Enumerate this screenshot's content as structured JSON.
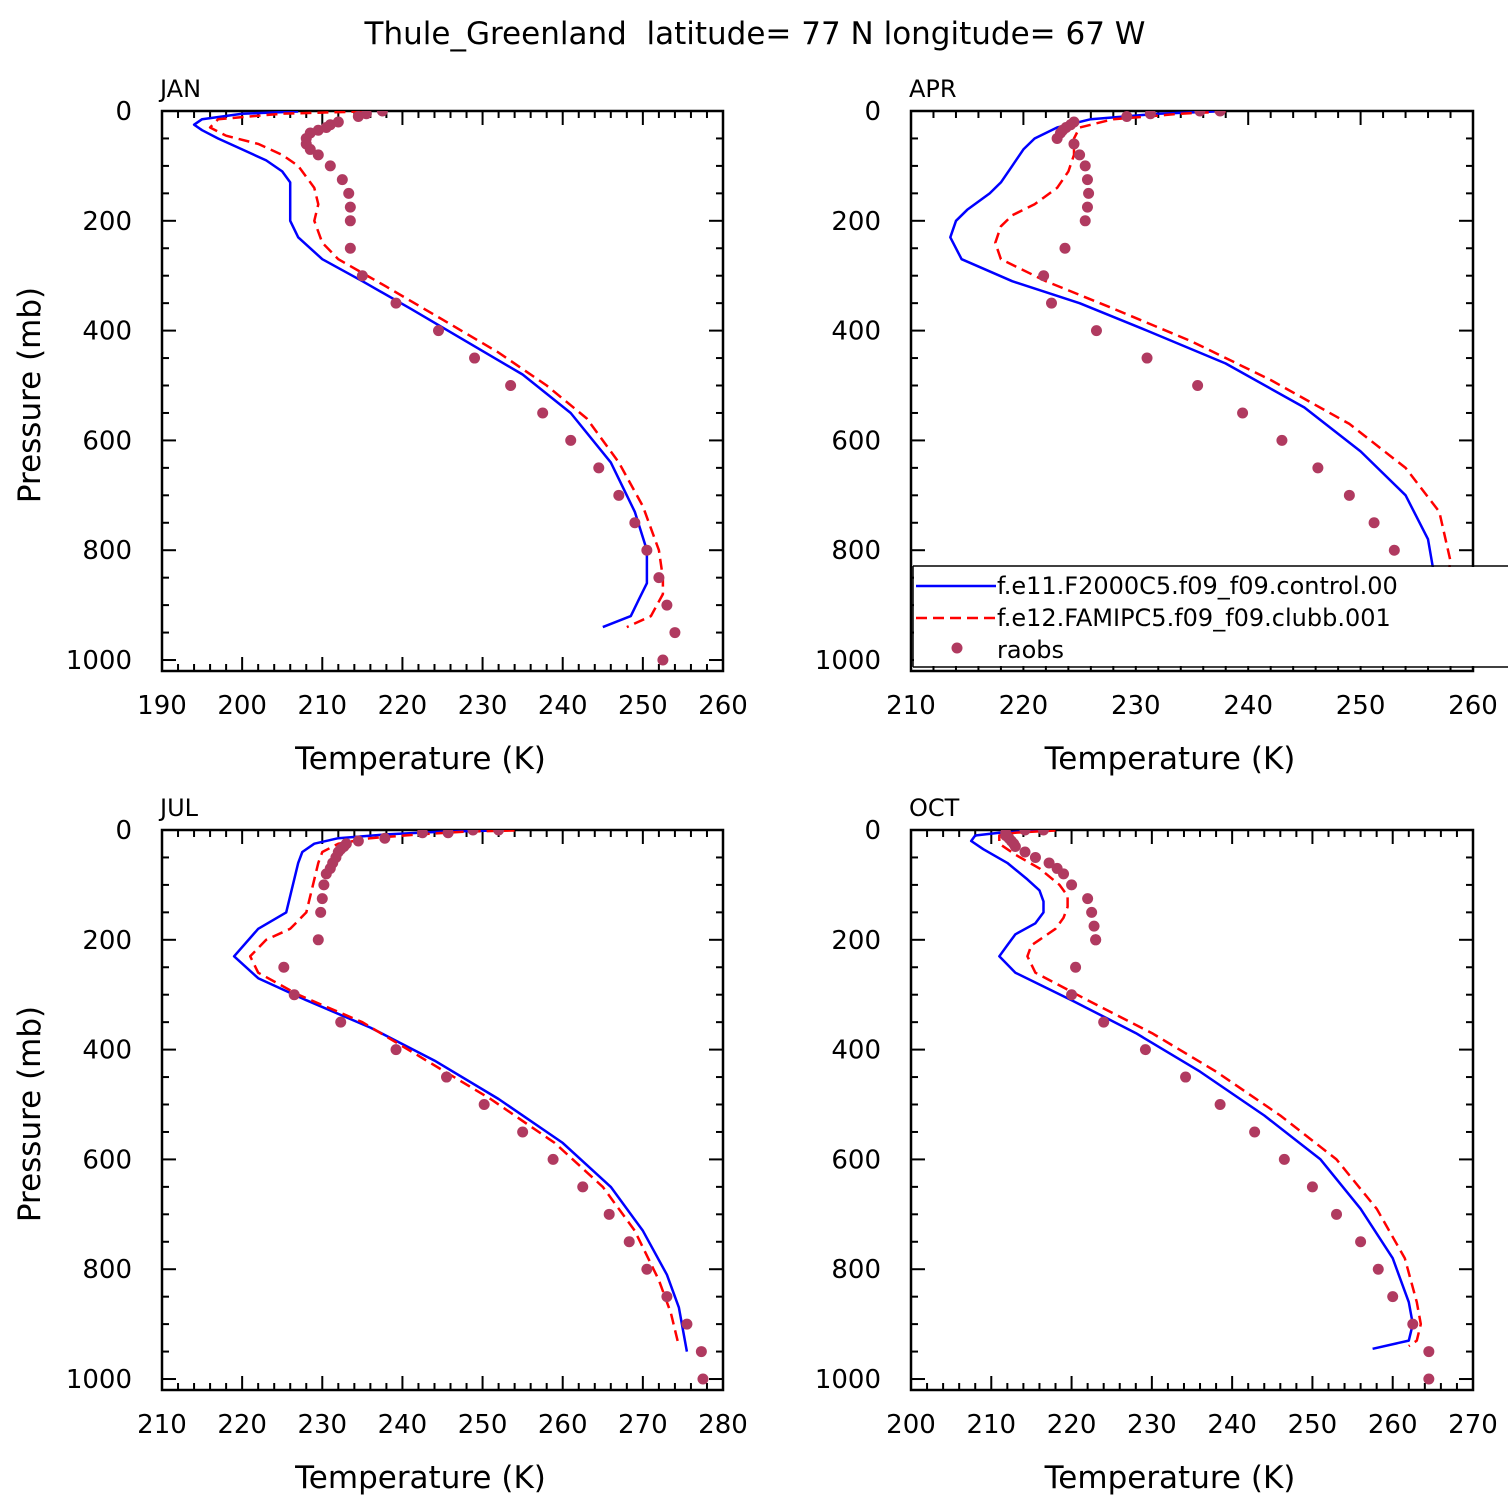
{
  "figure": {
    "title": "Thule_Greenland  latitude= 77 N longitude= 67 W"
  },
  "legend": {
    "entries": [
      {
        "label": "f.e11.F2000C5.f09_f09.control.00",
        "color": "#0000ff",
        "style": "solid"
      },
      {
        "label": "f.e12.FAMIPC5.f09_f09.clubb.001",
        "color": "#ff0000",
        "style": "dashed"
      },
      {
        "label": "raobs",
        "color": "#b03a60",
        "style": "marker"
      }
    ]
  },
  "chart_data": [
    {
      "type": "line",
      "panel_label": "JAN",
      "xlabel": "Temperature (K)",
      "ylabel": "Pressure (mb)",
      "xlim": [
        190,
        260
      ],
      "ylim": [
        0,
        1000
      ],
      "xticks": [
        190,
        200,
        210,
        220,
        230,
        240,
        250,
        260
      ],
      "yticks": [
        0,
        200,
        400,
        600,
        800,
        1000
      ],
      "y_inverted": true,
      "series": [
        {
          "style": "solid",
          "color": "#0000ff",
          "x": [
            207,
            200,
            195,
            194,
            195,
            197,
            200,
            203,
            205,
            206,
            206,
            206,
            207,
            210,
            215,
            221,
            228,
            235,
            241,
            246,
            249,
            250.5,
            250.5,
            249.5,
            248.5,
            245
          ],
          "y": [
            1,
            5,
            15,
            25,
            35,
            50,
            70,
            90,
            110,
            130,
            150,
            200,
            230,
            270,
            310,
            360,
            420,
            480,
            550,
            640,
            730,
            800,
            860,
            890,
            920,
            940
          ]
        },
        {
          "style": "dashed",
          "color": "#ff0000",
          "x": [
            215,
            205,
            197,
            196,
            198,
            202,
            205,
            207,
            208,
            209,
            209.5,
            209,
            210,
            212,
            218,
            225,
            232,
            238,
            243,
            247,
            250,
            252,
            252.5,
            252.5,
            251,
            248
          ],
          "y": [
            1,
            5,
            15,
            30,
            45,
            60,
            80,
            100,
            120,
            140,
            170,
            200,
            240,
            270,
            320,
            380,
            440,
            500,
            560,
            640,
            720,
            800,
            850,
            880,
            920,
            940
          ]
        },
        {
          "style": "marker",
          "color": "#b03a60",
          "x": [
            217.5,
            215.5,
            214.5,
            212,
            211,
            210.5,
            209.5,
            208.5,
            208,
            208,
            208.5,
            209.5,
            211,
            212.5,
            213.3,
            213.5,
            213.5,
            213.5,
            215,
            219.2,
            224.5,
            229,
            233.5,
            237.5,
            241,
            244.5,
            247,
            249,
            250.5,
            252,
            253,
            254,
            252.5
          ],
          "y": [
            0,
            5,
            10,
            20,
            25,
            30,
            35,
            40,
            50,
            60,
            70,
            80,
            100,
            125,
            150,
            175,
            200,
            250,
            300,
            350,
            400,
            450,
            500,
            550,
            600,
            650,
            700,
            750,
            800,
            850,
            900,
            950,
            1000
          ]
        }
      ]
    },
    {
      "type": "line",
      "panel_label": "APR",
      "xlabel": "Temperature (K)",
      "ylabel": "",
      "xlim": [
        210,
        260
      ],
      "ylim": [
        0,
        1000
      ],
      "xticks": [
        210,
        220,
        230,
        240,
        250,
        260
      ],
      "yticks": [
        0,
        200,
        400,
        600,
        800,
        1000
      ],
      "y_inverted": true,
      "series": [
        {
          "style": "solid",
          "color": "#0000ff",
          "x": [
            237,
            232,
            226,
            223,
            221,
            220,
            219,
            218,
            217,
            215,
            214,
            213.5,
            214.5,
            219,
            225,
            231,
            238,
            245,
            250,
            254,
            256,
            256.5,
            256,
            254,
            252.5
          ],
          "y": [
            1,
            5,
            15,
            30,
            50,
            70,
            100,
            130,
            150,
            180,
            200,
            230,
            270,
            310,
            350,
            400,
            460,
            540,
            620,
            700,
            780,
            840,
            890,
            930,
            940
          ]
        },
        {
          "style": "dashed",
          "color": "#ff0000",
          "x": [
            238,
            234,
            228,
            225,
            224.5,
            224.5,
            224,
            223,
            221,
            219,
            218,
            217.5,
            218,
            222,
            228,
            235,
            242,
            249,
            254,
            257,
            258,
            257.5,
            256.5
          ],
          "y": [
            1,
            5,
            15,
            30,
            50,
            80,
            110,
            140,
            170,
            190,
            210,
            240,
            270,
            310,
            360,
            420,
            490,
            570,
            650,
            730,
            820,
            880,
            940
          ]
        },
        {
          "style": "marker",
          "color": "#b03a60",
          "x": [
            237.5,
            235.7,
            231.3,
            229.2,
            224.5,
            224.2,
            223.8,
            223.5,
            223.3,
            223,
            224.5,
            225,
            225.5,
            225.7,
            225.8,
            225.7,
            225.5,
            223.7,
            221.8,
            222.5,
            226.5,
            231,
            235.5,
            239.5,
            243,
            246.2,
            249,
            251.2,
            253,
            254.3,
            256,
            257,
            257.2
          ],
          "y": [
            0,
            0,
            5,
            10,
            20,
            25,
            30,
            35,
            40,
            50,
            60,
            80,
            100,
            125,
            150,
            175,
            200,
            250,
            300,
            350,
            400,
            450,
            500,
            550,
            600,
            650,
            700,
            750,
            800,
            850,
            900,
            950,
            1000
          ]
        }
      ]
    },
    {
      "type": "line",
      "panel_label": "JUL",
      "xlabel": "Temperature (K)",
      "ylabel": "Pressure (mb)",
      "xlim": [
        210,
        280
      ],
      "ylim": [
        0,
        1000
      ],
      "xticks": [
        210,
        220,
        230,
        240,
        250,
        260,
        270,
        280
      ],
      "yticks": [
        0,
        200,
        400,
        600,
        800,
        1000
      ],
      "y_inverted": true,
      "series": [
        {
          "style": "solid",
          "color": "#0000ff",
          "x": [
            252,
            245,
            238,
            232,
            229,
            227.5,
            227,
            226.5,
            226,
            225.5,
            222,
            219,
            222,
            228,
            236,
            244,
            252,
            260,
            266,
            270,
            273,
            274.5,
            275.5
          ],
          "y": [
            1,
            3,
            8,
            15,
            25,
            40,
            60,
            90,
            120,
            150,
            180,
            230,
            270,
            310,
            360,
            420,
            490,
            570,
            650,
            730,
            810,
            870,
            950
          ]
        },
        {
          "style": "dashed",
          "color": "#ff0000",
          "x": [
            254,
            248,
            242,
            236,
            232,
            230,
            229.5,
            229,
            228.5,
            228,
            226,
            223,
            221,
            222,
            227,
            235,
            243,
            251,
            259,
            265,
            269,
            272,
            273.5,
            274.5
          ],
          "y": [
            1,
            3,
            8,
            15,
            25,
            40,
            60,
            90,
            120,
            150,
            180,
            200,
            230,
            260,
            300,
            350,
            420,
            490,
            570,
            650,
            730,
            820,
            880,
            940
          ]
        },
        {
          "style": "marker",
          "color": "#b03a60",
          "x": [
            252,
            248.8,
            245.7,
            242.5,
            237.8,
            234.5,
            233,
            232.7,
            232.3,
            232,
            231.7,
            231.3,
            231,
            230.5,
            230.2,
            230,
            229.8,
            229.5,
            225.2,
            226.5,
            232.3,
            239.2,
            245.5,
            250.2,
            255,
            258.8,
            262.5,
            265.8,
            268.3,
            270.5,
            273,
            275.5,
            277.3,
            277.5
          ],
          "y": [
            0,
            0,
            5,
            5,
            15,
            20,
            25,
            30,
            35,
            40,
            50,
            60,
            70,
            80,
            100,
            125,
            150,
            200,
            250,
            300,
            350,
            400,
            450,
            500,
            550,
            600,
            650,
            700,
            750,
            800,
            850,
            900,
            950,
            1000
          ]
        }
      ]
    },
    {
      "type": "line",
      "panel_label": "OCT",
      "xlabel": "Temperature (K)",
      "ylabel": "",
      "xlim": [
        200,
        270
      ],
      "ylim": [
        0,
        1000
      ],
      "xticks": [
        200,
        210,
        220,
        230,
        240,
        250,
        260,
        270
      ],
      "yticks": [
        0,
        200,
        400,
        600,
        800,
        1000
      ],
      "y_inverted": true,
      "series": [
        {
          "style": "solid",
          "color": "#0000ff",
          "x": [
            216,
            211,
            208,
            207.5,
            209,
            212,
            214.5,
            216,
            216.5,
            216.5,
            215.5,
            213,
            212,
            211,
            213,
            220,
            228,
            236,
            244,
            251,
            256,
            260,
            262,
            262.5,
            262,
            257.5
          ],
          "y": [
            1,
            5,
            10,
            20,
            35,
            60,
            90,
            110,
            130,
            150,
            170,
            190,
            210,
            230,
            260,
            310,
            370,
            440,
            520,
            600,
            690,
            780,
            860,
            900,
            930,
            945
          ]
        },
        {
          "style": "dashed",
          "color": "#ff0000",
          "x": [
            218,
            213,
            211,
            211,
            213,
            216,
            218.5,
            219.5,
            219.5,
            219,
            218,
            216,
            215,
            214.5,
            215.5,
            222,
            230,
            238,
            246,
            253,
            258,
            261.5,
            263,
            263.5,
            263,
            262
          ],
          "y": [
            1,
            5,
            10,
            25,
            45,
            70,
            100,
            120,
            140,
            160,
            180,
            200,
            210,
            230,
            260,
            310,
            370,
            440,
            520,
            600,
            690,
            780,
            860,
            900,
            930,
            940
          ]
        },
        {
          "style": "marker",
          "color": "#b03a60",
          "x": [
            216.5,
            214.2,
            211.8,
            211.8,
            212.2,
            212.5,
            212.8,
            213,
            214.2,
            215.5,
            217.2,
            218.2,
            219,
            220,
            222,
            222.5,
            222.8,
            223,
            223,
            220.5,
            220,
            224,
            229.2,
            234.2,
            238.5,
            242.8,
            246.5,
            250,
            253,
            256,
            258.2,
            260,
            262.5,
            264.5,
            264.5
          ],
          "y": [
            0,
            0,
            5,
            10,
            15,
            20,
            25,
            30,
            40,
            50,
            60,
            70,
            80,
            100,
            125,
            150,
            175,
            200,
            200,
            250,
            300,
            350,
            400,
            450,
            500,
            550,
            600,
            650,
            700,
            750,
            800,
            850,
            900,
            950,
            1000
          ]
        }
      ]
    }
  ]
}
